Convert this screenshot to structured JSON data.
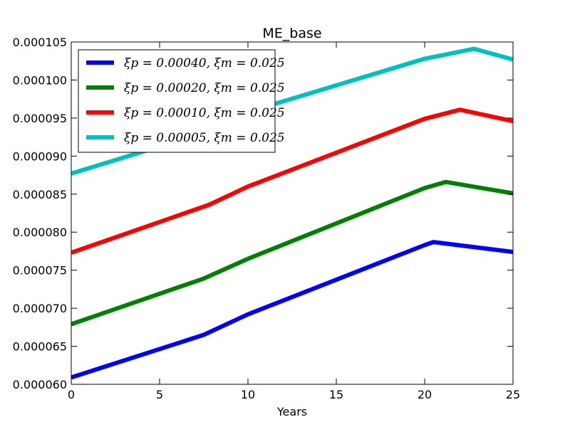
{
  "chart_data": {
    "type": "line",
    "title": "ME_base",
    "xlabel": "Years",
    "ylabel": "",
    "xlim": [
      0,
      25
    ],
    "ylim": [
      6e-05,
      0.000105
    ],
    "xticks": [
      0,
      5,
      10,
      15,
      20,
      25
    ],
    "xtick_labels": [
      "0",
      "5",
      "10",
      "15",
      "20",
      "25"
    ],
    "yticks": [
      6e-05,
      6.5e-05,
      7e-05,
      7.5e-05,
      8e-05,
      8.5e-05,
      9e-05,
      9.5e-05,
      0.0001,
      0.000105
    ],
    "ytick_labels": [
      "0.000060",
      "0.000065",
      "0.000070",
      "0.000075",
      "0.000080",
      "0.000085",
      "0.000090",
      "0.000095",
      "0.000100",
      "0.000105"
    ],
    "grid": false,
    "legend_position": "top-left",
    "series": [
      {
        "name": "ξp = 0.00040, ξm = 0.025",
        "color": "#0000ff",
        "x": [
          0,
          7.5,
          10,
          20,
          20.5,
          25
        ],
        "y": [
          6.09e-05,
          6.65e-05,
          6.92e-05,
          7.83e-05,
          7.87e-05,
          7.74e-05
        ]
      },
      {
        "name": "ξp = 0.00020, ξm = 0.025",
        "color": "#008000",
        "x": [
          0,
          7.5,
          10,
          20,
          21.2,
          25
        ],
        "y": [
          6.79e-05,
          7.39e-05,
          7.65e-05,
          8.58e-05,
          8.66e-05,
          8.51e-05
        ]
      },
      {
        "name": "ξp = 0.00010, ξm = 0.025",
        "color": "#ff0000",
        "x": [
          0,
          7.8,
          10,
          20,
          22,
          25
        ],
        "y": [
          7.73e-05,
          8.36e-05,
          8.6e-05,
          9.49e-05,
          9.61e-05,
          9.46e-05
        ]
      },
      {
        "name": "ξp = 0.00005, ξm = 0.025",
        "color": "#00bfbf",
        "x": [
          0,
          8,
          10,
          20,
          22.8,
          25
        ],
        "y": [
          8.77e-05,
          9.34e-05,
          9.58e-05,
          0.0001028,
          0.0001041,
          0.0001027
        ]
      }
    ]
  }
}
